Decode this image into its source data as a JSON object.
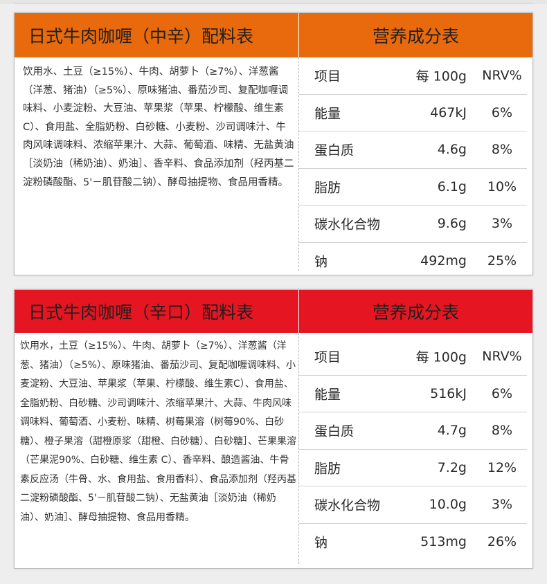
{
  "panels": [
    {
      "title": "日式牛肉咖喱（中辛）配料表",
      "nutrition_title": "营养成分表",
      "ingredients": "饮用水、土豆（≥15%）、牛肉、胡萝卜（≥7%）、洋葱酱（洋葱、猪油）（≥5%）、原味猪油、番茄沙司、复配咖喱调味料、小麦淀粉、大豆油、苹果浆（苹果、柠檬酸、维生素 C）、食用盐、全脂奶粉、白砂糖、小麦粉、沙司调味汁、牛肉风味调味料、浓缩苹果汁、大蒜、葡萄酒、味精、无盐黄油［淡奶油（稀奶油）、奶油］、香辛料、食品添加剂（羟丙基二淀粉磷酸酯、5'－肌苷酸二钠）、酵母抽提物、食品用香精。",
      "color": "#e96a0c",
      "rows": [
        {
          "name": "项目",
          "value": "每 100g",
          "nrv": "NRV%"
        },
        {
          "name": "能量",
          "value": "467kJ",
          "nrv": "6%"
        },
        {
          "name": "蛋白质",
          "value": "4.6g",
          "nrv": "8%"
        },
        {
          "name": "脂肪",
          "value": "6.1g",
          "nrv": "10%"
        },
        {
          "name": "碳水化合物",
          "value": "9.6g",
          "nrv": "3%"
        },
        {
          "name": "钠",
          "value": "492mg",
          "nrv": "25%"
        }
      ]
    },
    {
      "title": "日式牛肉咖喱（辛口）配料表",
      "nutrition_title": "营养成分表",
      "ingredients": "饮用水，土豆（≥15%）、牛肉、胡萝卜（≥7%）、洋葱酱（洋葱、猪油）（≥5%）、原味猪油、番茄沙司、复配咖喱调味料、小麦淀粉、大豆油、苹果浆（苹果、柠檬酸、维生素C）、食用盐、全脂奶粉、白砂糖、沙司调味汁、浓缩苹果汁、大蒜、牛肉风味调味料、葡萄酒、小麦粉、味精、树莓果溶（树莓90%、白砂糖）、橙子果溶（甜橙原浆（甜橙、白砂糖）、白砂糖］、芒果果溶（芒果泥90%、白砂糖、维生素 C）、香辛料、酿造酱油、牛骨素反应汤（牛骨、水、食用盐、食用香料）、食品添加剂（羟丙基二淀粉磷酸酯、5'－肌苷酸二钠）、无盐黄油［淡奶油（稀奶油）、奶油］、酵母抽提物、食品用香精。",
      "color": "#e51621",
      "rows": [
        {
          "name": "项目",
          "value": "每 100g",
          "nrv": "NRV%"
        },
        {
          "name": "能量",
          "value": "516kJ",
          "nrv": "6%"
        },
        {
          "name": "蛋白质",
          "value": "4.7g",
          "nrv": "8%"
        },
        {
          "name": "脂肪",
          "value": "7.2g",
          "nrv": "12%"
        },
        {
          "name": "碳水化合物",
          "value": "10.0g",
          "nrv": "3%"
        },
        {
          "name": "钠",
          "value": "513mg",
          "nrv": "26%"
        }
      ]
    }
  ]
}
